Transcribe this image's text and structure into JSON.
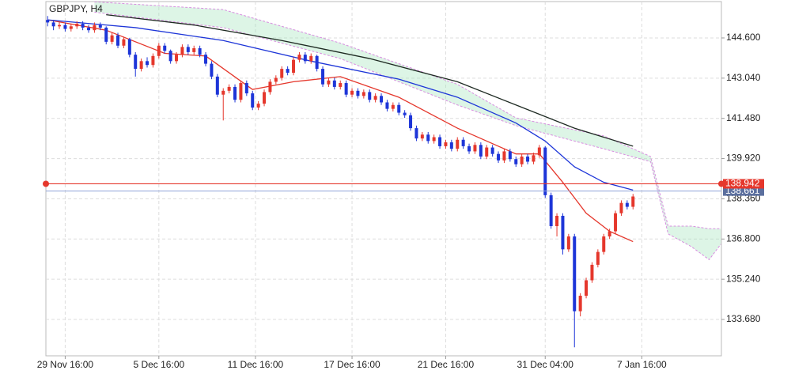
{
  "chart_data": {
    "type": "candlestick",
    "title": "GBPJPY, H4",
    "up_color": "#e5372c",
    "down_color": "#1d35d8",
    "candles": {
      "open": [
        145.3,
        145.2,
        145.05,
        145.1,
        144.95,
        145.05,
        145.15,
        145.0,
        144.9,
        145.1,
        145.0,
        144.45,
        144.7,
        144.3,
        144.55,
        143.95,
        143.4,
        143.7,
        143.55,
        143.9,
        144.3,
        144.1,
        143.7,
        143.95,
        144.25,
        144.05,
        144.2,
        143.95,
        143.6,
        143.1,
        142.4,
        142.55,
        142.7,
        142.2,
        142.85,
        142.45,
        141.9,
        142.05,
        142.5,
        142.9,
        143.05,
        143.4,
        143.25,
        143.75,
        143.95,
        143.7,
        143.9,
        143.4,
        142.8,
        142.95,
        142.7,
        142.85,
        142.4,
        142.55,
        142.35,
        142.5,
        142.2,
        142.35,
        142.1,
        141.85,
        142.0,
        141.7,
        141.6,
        141.1,
        140.7,
        140.85,
        140.6,
        140.75,
        140.4,
        140.55,
        140.3,
        140.65,
        140.4,
        140.2,
        140.45,
        140.0,
        140.35,
        140.1,
        139.85,
        140.2,
        139.9,
        139.7,
        140.0,
        139.8,
        140.05,
        140.35,
        138.5,
        137.3,
        137.7,
        136.4,
        136.9,
        134.0,
        134.6,
        135.2,
        135.8,
        136.3,
        136.9,
        137.1,
        137.8,
        138.2,
        138.05
      ],
      "high": [
        145.45,
        145.3,
        145.2,
        145.2,
        145.15,
        145.25,
        145.25,
        145.1,
        145.2,
        145.2,
        145.05,
        144.8,
        144.8,
        144.65,
        144.6,
        144.05,
        143.8,
        143.85,
        144.0,
        144.4,
        144.4,
        144.15,
        144.05,
        144.35,
        144.35,
        144.3,
        144.3,
        144.05,
        143.7,
        143.2,
        142.65,
        142.8,
        142.8,
        142.95,
        142.95,
        142.55,
        142.15,
        142.6,
        143.0,
        143.15,
        143.5,
        143.5,
        143.85,
        144.05,
        144.05,
        144.0,
        143.95,
        143.5,
        143.05,
        143.05,
        142.95,
        142.95,
        142.65,
        142.65,
        142.6,
        142.6,
        142.45,
        142.45,
        142.2,
        142.1,
        142.1,
        141.8,
        141.7,
        141.2,
        140.95,
        140.95,
        140.85,
        140.85,
        140.65,
        140.65,
        140.75,
        140.75,
        140.5,
        140.55,
        140.55,
        140.45,
        140.45,
        140.2,
        140.3,
        140.3,
        140.0,
        140.1,
        140.1,
        140.15,
        140.45,
        140.4,
        138.6,
        137.8,
        137.8,
        137.0,
        137.0,
        134.7,
        135.3,
        135.9,
        136.4,
        137.0,
        137.2,
        137.9,
        138.3,
        138.3,
        138.55
      ],
      "low": [
        145.05,
        144.9,
        144.95,
        144.85,
        144.85,
        144.95,
        144.9,
        144.8,
        144.8,
        144.9,
        144.35,
        144.35,
        144.2,
        144.2,
        143.85,
        143.1,
        143.3,
        143.45,
        143.45,
        143.8,
        144.0,
        143.6,
        143.6,
        143.85,
        143.95,
        143.95,
        143.85,
        143.5,
        143.0,
        142.3,
        141.4,
        142.45,
        142.1,
        142.1,
        142.35,
        141.8,
        141.8,
        141.95,
        142.4,
        142.8,
        142.95,
        143.15,
        143.15,
        143.65,
        143.6,
        143.6,
        143.3,
        142.7,
        142.7,
        142.6,
        142.6,
        142.3,
        142.3,
        142.25,
        142.25,
        142.1,
        142.1,
        142.0,
        141.75,
        141.75,
        141.6,
        141.5,
        141.0,
        140.6,
        140.6,
        140.5,
        140.5,
        140.3,
        140.3,
        140.2,
        140.2,
        140.3,
        140.1,
        140.1,
        139.9,
        139.9,
        140.0,
        139.75,
        139.75,
        139.8,
        139.6,
        139.6,
        139.7,
        139.7,
        139.95,
        138.4,
        137.2,
        136.9,
        136.2,
        136.3,
        132.6,
        133.8,
        134.5,
        135.1,
        135.7,
        136.2,
        136.8,
        137.0,
        137.7,
        137.95,
        137.95
      ],
      "close": [
        145.2,
        145.05,
        145.1,
        144.95,
        145.05,
        145.15,
        145.0,
        144.9,
        145.1,
        145.0,
        144.45,
        144.7,
        144.3,
        144.55,
        143.95,
        143.4,
        143.7,
        143.55,
        143.9,
        144.3,
        144.1,
        143.7,
        143.95,
        144.25,
        144.05,
        144.2,
        143.95,
        143.6,
        143.1,
        142.4,
        142.55,
        142.7,
        142.2,
        142.85,
        142.45,
        141.9,
        142.05,
        142.5,
        142.9,
        143.05,
        143.4,
        143.25,
        143.75,
        143.95,
        143.7,
        143.9,
        143.4,
        142.8,
        142.95,
        142.7,
        142.85,
        142.4,
        142.55,
        142.35,
        142.5,
        142.2,
        142.35,
        142.1,
        141.85,
        142.0,
        141.7,
        141.6,
        141.1,
        140.7,
        140.85,
        140.6,
        140.75,
        140.4,
        140.55,
        140.3,
        140.65,
        140.4,
        140.2,
        140.45,
        140.0,
        140.35,
        140.1,
        139.85,
        140.2,
        139.9,
        139.7,
        140.0,
        139.8,
        140.05,
        140.35,
        138.5,
        137.3,
        137.7,
        136.4,
        136.9,
        134.0,
        134.6,
        135.2,
        135.8,
        136.3,
        136.9,
        137.1,
        137.8,
        138.2,
        138.05,
        138.45
      ]
    },
    "cloud": {
      "fill": "#9fe3b8",
      "edge_color": "#d88ee0",
      "x": [
        8,
        30,
        50,
        70,
        80,
        95,
        103,
        106,
        110,
        113,
        115
      ],
      "span_a": [
        145.6,
        145.0,
        143.8,
        142.0,
        141.2,
        140.3,
        139.8,
        137.0,
        136.5,
        136.0,
        136.6
      ],
      "span_b": [
        146.0,
        145.7,
        144.4,
        142.8,
        141.5,
        140.8,
        140.0,
        137.3,
        137.3,
        137.2,
        137.2
      ]
    },
    "lines": [
      {
        "color": "#e5372c",
        "x": [
          0,
          10,
          20,
          27,
          35,
          42,
          50,
          60,
          70,
          80,
          84,
          88,
          92,
          96,
          100
        ],
        "values": [
          145.3,
          144.9,
          144.0,
          143.9,
          142.6,
          142.9,
          143.1,
          142.3,
          141.1,
          140.1,
          140.1,
          139.0,
          137.8,
          137.1,
          136.7
        ]
      },
      {
        "color": "#1d35d8",
        "x": [
          0,
          15,
          30,
          45,
          60,
          70,
          80,
          85,
          90,
          95,
          100
        ],
        "values": [
          145.3,
          145.0,
          144.5,
          143.7,
          143.0,
          142.3,
          141.3,
          140.6,
          139.6,
          139.0,
          138.7
        ]
      },
      {
        "color": "#1e2a22",
        "x": [
          10,
          25,
          40,
          55,
          70,
          80,
          90,
          100
        ],
        "values": [
          145.5,
          145.1,
          144.5,
          143.8,
          142.9,
          142.0,
          141.1,
          140.4
        ]
      }
    ],
    "price_lines": [
      {
        "value": 138.942,
        "color": "#e5372c"
      },
      {
        "value": 138.661,
        "color": "#8fa3d9"
      }
    ],
    "xlim": [
      -0.3,
      115.1
    ],
    "ylim": [
      132.27,
      146.01
    ],
    "yticks": [
      {
        "value": 144.6,
        "label": "144.600"
      },
      {
        "value": 143.04,
        "label": "143.040"
      },
      {
        "value": 141.48,
        "label": "141.480"
      },
      {
        "value": 139.92,
        "label": "139.920"
      },
      {
        "value": 138.36,
        "label": "138.360"
      },
      {
        "value": 136.8,
        "label": "136.800"
      },
      {
        "value": 135.24,
        "label": "135.240"
      },
      {
        "value": 133.68,
        "label": "133.680"
      }
    ],
    "xticks": [
      {
        "value": 3,
        "label": "29 Nov 16:00"
      },
      {
        "value": 19,
        "label": "5 Dec 16:00"
      },
      {
        "value": 35.5,
        "label": "11 Dec 16:00"
      },
      {
        "value": 52,
        "label": "17 Dec 16:00"
      },
      {
        "value": 68,
        "label": "21 Dec 16:00"
      },
      {
        "value": 85,
        "label": "31 Dec 04:00"
      },
      {
        "value": 101.5,
        "label": "7 Jan 16:00"
      }
    ],
    "grid": true
  }
}
